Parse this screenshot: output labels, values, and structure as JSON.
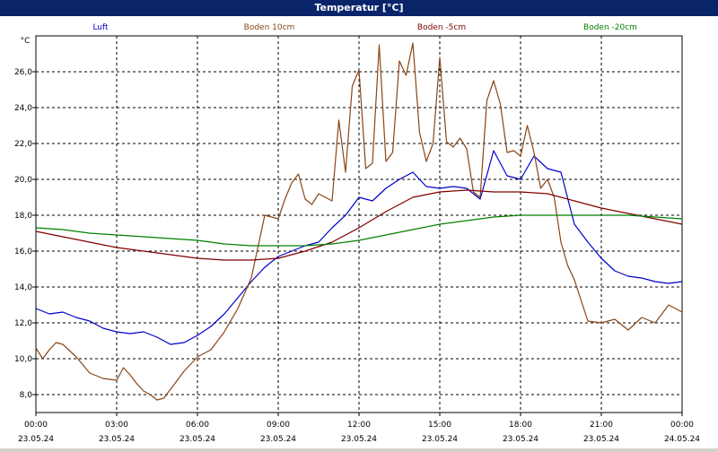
{
  "window": {
    "title": "Temperatur [°C]"
  },
  "chart_data": {
    "type": "line",
    "ylabel": "°C",
    "ylim": [
      7,
      28
    ],
    "yticks": [
      "8,0",
      "10,0",
      "12,0",
      "14,0",
      "16,0",
      "18,0",
      "20,0",
      "22,0",
      "24,0",
      "26,0"
    ],
    "xticks": [
      {
        "time": "00:00",
        "date": "23.05.24"
      },
      {
        "time": "03:00",
        "date": "23.05.24"
      },
      {
        "time": "06:00",
        "date": "23.05.24"
      },
      {
        "time": "09:00",
        "date": "23.05.24"
      },
      {
        "time": "12:00",
        "date": "23.05.24"
      },
      {
        "time": "15:00",
        "date": "23.05.24"
      },
      {
        "time": "18:00",
        "date": "23.05.24"
      },
      {
        "time": "21:00",
        "date": "23.05.24"
      },
      {
        "time": "00:00",
        "date": "24.05.24"
      }
    ],
    "grid": true,
    "legend_position": "top",
    "series": [
      {
        "name": "Luft",
        "color": "#0000cc",
        "x": [
          0,
          0.5,
          1,
          1.5,
          2,
          2.5,
          3,
          3.5,
          4,
          4.5,
          5,
          5.5,
          6,
          6.5,
          7,
          7.5,
          8,
          8.5,
          9,
          9.5,
          10,
          10.5,
          11,
          11.5,
          12,
          12.5,
          13,
          13.5,
          14,
          14.5,
          15,
          15.5,
          16,
          16.5,
          17,
          17.5,
          18,
          18.5,
          19,
          19.5,
          20,
          20.5,
          21,
          21.5,
          22,
          22.5,
          23,
          23.5,
          24
        ],
        "y": [
          12.8,
          12.5,
          12.6,
          12.3,
          12.1,
          11.7,
          11.5,
          11.4,
          11.5,
          11.2,
          10.8,
          10.9,
          11.3,
          11.8,
          12.5,
          13.4,
          14.3,
          15.1,
          15.7,
          16.0,
          16.3,
          16.5,
          17.3,
          18.0,
          19.0,
          18.8,
          19.5,
          20.0,
          20.4,
          19.6,
          19.5,
          19.6,
          19.5,
          18.9,
          21.6,
          20.2,
          20.0,
          21.3,
          20.6,
          20.4,
          17.5,
          16.5,
          15.6,
          14.9,
          14.6,
          14.5,
          14.3,
          14.2,
          14.3
        ]
      },
      {
        "name": "Boden 10cm",
        "color": "#8b4513",
        "x": [
          0,
          0.25,
          0.5,
          0.75,
          1,
          1.5,
          2,
          2.5,
          3,
          3.25,
          3.5,
          3.75,
          4,
          4.25,
          4.5,
          4.75,
          5,
          5.5,
          6,
          6.5,
          7,
          7.5,
          8,
          8.5,
          9,
          9.25,
          9.5,
          9.75,
          10,
          10.25,
          10.5,
          11,
          11.25,
          11.5,
          11.75,
          12,
          12.25,
          12.5,
          12.75,
          13,
          13.25,
          13.5,
          13.75,
          14,
          14.25,
          14.5,
          14.75,
          15,
          15.25,
          15.5,
          15.75,
          16,
          16.25,
          16.5,
          16.75,
          17,
          17.25,
          17.5,
          17.75,
          18,
          18.25,
          18.5,
          18.75,
          19,
          19.25,
          19.5,
          19.75,
          20,
          20.5,
          21,
          21.5,
          22,
          22.5,
          23,
          23.5,
          24
        ],
        "y": [
          10.6,
          10.0,
          10.5,
          10.9,
          10.8,
          10.1,
          9.2,
          8.9,
          8.8,
          9.5,
          9.1,
          8.6,
          8.2,
          8.0,
          7.7,
          7.8,
          8.3,
          9.3,
          10.1,
          10.5,
          11.5,
          12.8,
          14.5,
          18.0,
          17.8,
          18.9,
          19.8,
          20.3,
          18.9,
          18.6,
          19.2,
          18.8,
          23.3,
          20.4,
          25.2,
          26.1,
          20.6,
          20.9,
          27.5,
          21.0,
          21.5,
          26.6,
          25.8,
          27.6,
          22.6,
          21.0,
          22.0,
          26.8,
          22.1,
          21.8,
          22.3,
          21.7,
          19.3,
          19.0,
          24.4,
          25.5,
          24.2,
          21.5,
          21.6,
          21.3,
          23.0,
          21.5,
          19.5,
          20.0,
          19.0,
          16.5,
          15.2,
          14.4,
          12.1,
          12.0,
          12.2,
          11.6,
          12.3,
          12.0,
          13.0,
          12.6
        ]
      },
      {
        "name": "Boden -5cm",
        "color": "#800000",
        "x": [
          0,
          1,
          2,
          3,
          4,
          5,
          6,
          7,
          8,
          9,
          10,
          11,
          12,
          13,
          14,
          15,
          16,
          17,
          18,
          19,
          20,
          21,
          22,
          23,
          24
        ],
        "y": [
          17.1,
          16.8,
          16.5,
          16.2,
          16.0,
          15.8,
          15.6,
          15.5,
          15.5,
          15.6,
          16.0,
          16.5,
          17.3,
          18.2,
          19.0,
          19.3,
          19.4,
          19.3,
          19.3,
          19.2,
          18.8,
          18.4,
          18.1,
          17.8,
          17.5
        ]
      },
      {
        "name": "Boden -20cm",
        "color": "#008000",
        "x": [
          0,
          1,
          2,
          3,
          4,
          5,
          6,
          7,
          8,
          9,
          10,
          11,
          12,
          13,
          14,
          15,
          16,
          17,
          18,
          19,
          20,
          21,
          22,
          23,
          24
        ],
        "y": [
          17.3,
          17.2,
          17.0,
          16.9,
          16.8,
          16.7,
          16.6,
          16.4,
          16.3,
          16.3,
          16.3,
          16.4,
          16.6,
          16.9,
          17.2,
          17.5,
          17.7,
          17.9,
          18.0,
          18.0,
          18.0,
          18.0,
          18.0,
          17.9,
          17.8
        ]
      }
    ]
  }
}
